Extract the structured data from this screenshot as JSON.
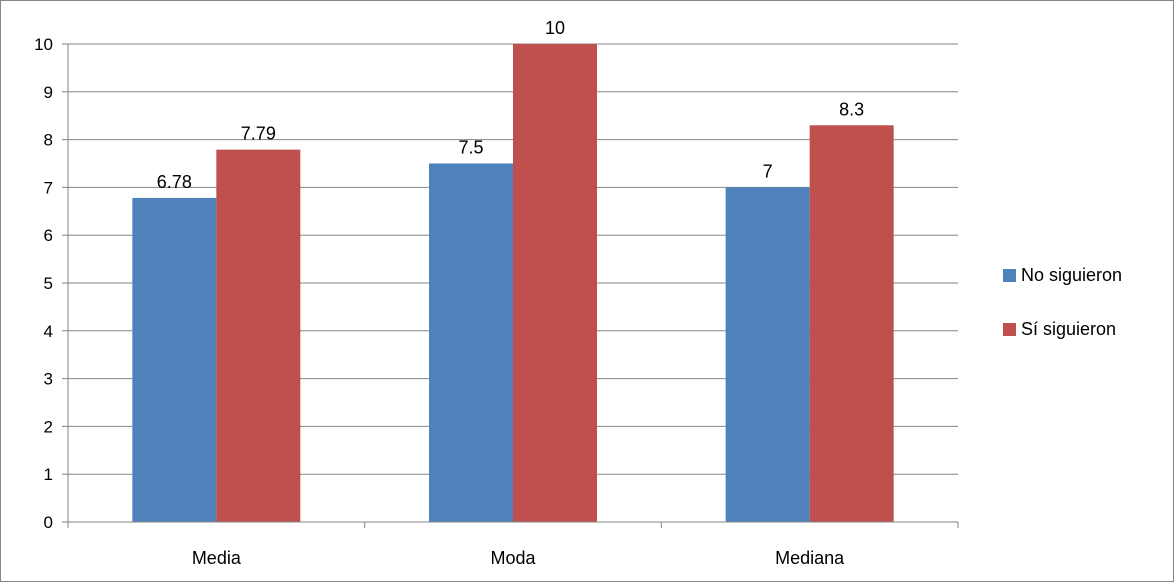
{
  "chart_data": {
    "type": "bar",
    "categories": [
      "Media",
      "Moda",
      "Mediana"
    ],
    "series": [
      {
        "name": "No siguieron",
        "values": [
          6.78,
          7.5,
          7
        ],
        "labels": [
          "6.78",
          "7.5",
          "7"
        ],
        "color": "#4F81BD"
      },
      {
        "name": "Sí siguieron",
        "values": [
          7.79,
          10,
          8.3
        ],
        "labels": [
          "7.79",
          "10",
          "8.3"
        ],
        "color": "#C0504D"
      }
    ],
    "y_ticks": [
      "0",
      "1",
      "2",
      "3",
      "4",
      "5",
      "6",
      "7",
      "8",
      "9",
      "10"
    ],
    "ylim": [
      0,
      10
    ],
    "grid": true,
    "legend": "right",
    "gridline_color": "#868686"
  }
}
